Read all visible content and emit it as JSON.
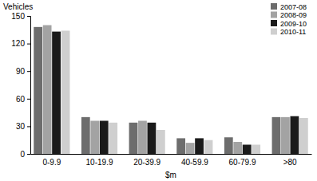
{
  "chart_data": {
    "type": "bar",
    "y_label": "Vehicles",
    "x_label": "$m",
    "categories": [
      "0-9.9",
      "10-19.9",
      "20-39.9",
      "40-59.9",
      "60-79.9",
      ">80"
    ],
    "series": [
      {
        "name": "2007-08",
        "color": "#6d6d6d",
        "values": [
          138,
          40,
          34,
          17,
          18,
          40
        ]
      },
      {
        "name": "2008-09",
        "color": "#a3a3a3",
        "values": [
          140,
          36,
          36,
          12,
          13,
          40
        ]
      },
      {
        "name": "2009-10",
        "color": "#1a1a1a",
        "values": [
          133,
          36,
          34,
          17,
          10,
          41
        ]
      },
      {
        "name": "2010-11",
        "color": "#cfcfcf",
        "values": [
          134,
          34,
          26,
          15,
          10,
          39
        ]
      }
    ],
    "ylim": [
      0,
      150
    ],
    "yticks": [
      0,
      30,
      60,
      90,
      120,
      150
    ],
    "grid": false,
    "legend": "upper right"
  }
}
